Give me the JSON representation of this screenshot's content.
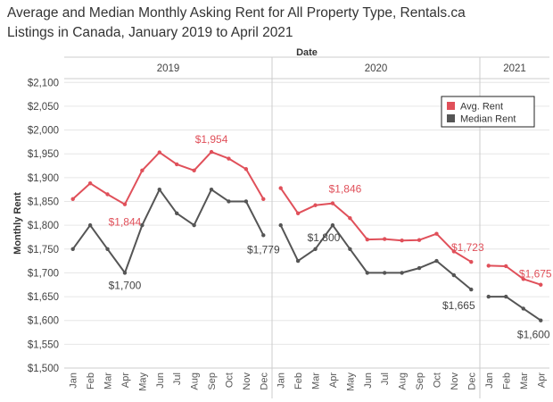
{
  "title_lines": [
    "Average and Median Monthly Asking Rent for All Property Type, Rentals.ca",
    "Listings in Canada, January 2019 to April 2021"
  ],
  "colors": {
    "avg": "#e0505a",
    "median": "#555555",
    "grid": "#e6e6e6",
    "border": "#cccccc"
  },
  "chart_data": {
    "type": "line",
    "title": "Average and Median Monthly Asking Rent for All Property Type, Rentals.ca Listings in Canada, January 2019 to April 2021",
    "xlabel": "Date",
    "ylabel": "Monthly Rent",
    "ylim": [
      1500,
      2100
    ],
    "yticks": [
      1500,
      1550,
      1600,
      1650,
      1700,
      1750,
      1800,
      1850,
      1900,
      1950,
      2000,
      2050,
      2100
    ],
    "ytick_labels": [
      "$1,500",
      "$1,550",
      "$1,600",
      "$1,650",
      "$1,700",
      "$1,750",
      "$1,800",
      "$1,850",
      "$1,900",
      "$1,950",
      "$2,000",
      "$2,050",
      "$2,100"
    ],
    "grid": true,
    "legend_position": "top-right",
    "panels": [
      {
        "year": "2019",
        "months": [
          "Jan",
          "Feb",
          "Mar",
          "Apr",
          "May",
          "Jun",
          "Jul",
          "Aug",
          "Sep",
          "Oct",
          "Nov",
          "Dec"
        ]
      },
      {
        "year": "2020",
        "months": [
          "Jan",
          "Feb",
          "Mar",
          "Apr",
          "May",
          "Jun",
          "Jul",
          "Aug",
          "Sep",
          "Oct",
          "Nov",
          "Dec"
        ]
      },
      {
        "year": "2021",
        "months": [
          "Jan",
          "Feb",
          "Mar",
          "Apr"
        ]
      }
    ],
    "series": [
      {
        "name": "Avg. Rent",
        "color": "#e0505a",
        "values": [
          [
            1855,
            1888,
            1865,
            1844,
            1915,
            1953,
            1928,
            1915,
            1954,
            1940,
            1918,
            1855
          ],
          [
            1878,
            1825,
            1842,
            1846,
            1815,
            1770,
            1771,
            1768,
            1769,
            1782,
            1745,
            1723
          ],
          [
            1715,
            1714,
            1687,
            1675
          ]
        ]
      },
      {
        "name": "Median Rent",
        "color": "#555555",
        "values": [
          [
            1750,
            1800,
            1750,
            1700,
            1800,
            1875,
            1825,
            1800,
            1875,
            1850,
            1850,
            1779
          ],
          [
            1800,
            1725,
            1750,
            1800,
            1750,
            1700,
            1700,
            1700,
            1710,
            1725,
            1695,
            1665
          ],
          [
            1650,
            1650,
            1625,
            1600
          ]
        ]
      }
    ],
    "annotations": [
      {
        "text": "$1,844",
        "series": 0,
        "panel": 0,
        "index": 3
      },
      {
        "text": "$1,954",
        "series": 0,
        "panel": 0,
        "index": 8
      },
      {
        "text": "$1,700",
        "series": 1,
        "panel": 0,
        "index": 3
      },
      {
        "text": "$1,779",
        "series": 1,
        "panel": 0,
        "index": 11
      },
      {
        "text": "$1,846",
        "series": 0,
        "panel": 1,
        "index": 3
      },
      {
        "text": "$1,800",
        "series": 1,
        "panel": 1,
        "index": 3
      },
      {
        "text": "$1,723",
        "series": 0,
        "panel": 1,
        "index": 11
      },
      {
        "text": "$1,665",
        "series": 1,
        "panel": 1,
        "index": 11
      },
      {
        "text": "$1,675",
        "series": 0,
        "panel": 2,
        "index": 3
      },
      {
        "text": "$1,600",
        "series": 1,
        "panel": 2,
        "index": 3
      }
    ]
  }
}
